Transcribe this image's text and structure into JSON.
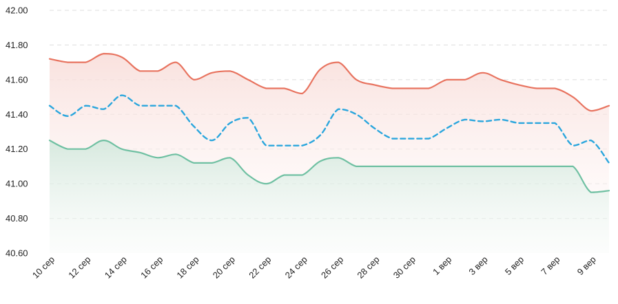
{
  "chart_data": {
    "type": "line",
    "title": "",
    "xlabel": "",
    "ylabel": "",
    "ylim": [
      40.6,
      42.0
    ],
    "y_ticks": [
      "40.60",
      "40.80",
      "41.00",
      "41.20",
      "41.40",
      "41.60",
      "41.80",
      "42.00"
    ],
    "grid": true,
    "legend": "none",
    "x_tick_labels": [
      "10 сер",
      "12 сер",
      "14 сер",
      "16 сер",
      "18 сер",
      "20 сер",
      "22 сер",
      "24 сер",
      "26 сер",
      "28 сер",
      "30 сер",
      "1 вер",
      "3 вер",
      "5 вер",
      "7 вер",
      "9 вер"
    ],
    "series": [
      {
        "color": "#e8735f",
        "fill": "#fbe9e7",
        "style": "solid",
        "values": [
          41.72,
          41.7,
          41.7,
          41.75,
          41.73,
          41.65,
          41.65,
          41.7,
          41.6,
          41.64,
          41.65,
          41.6,
          41.55,
          41.55,
          41.52,
          41.66,
          41.7,
          41.6,
          41.57,
          41.55,
          41.55,
          41.55,
          41.6,
          41.6,
          41.64,
          41.6,
          41.57,
          41.55,
          41.55,
          41.5,
          41.42,
          41.45
        ]
      },
      {
        "color": "#2aa6dd",
        "style": "dashed",
        "values": [
          41.45,
          41.39,
          41.45,
          41.43,
          41.51,
          41.45,
          41.45,
          41.45,
          41.33,
          41.25,
          41.35,
          41.38,
          41.22,
          41.22,
          41.22,
          41.28,
          41.43,
          41.4,
          41.32,
          41.26,
          41.26,
          41.26,
          41.32,
          41.37,
          41.36,
          41.37,
          41.35,
          41.35,
          41.35,
          41.22,
          41.25,
          41.12
        ]
      },
      {
        "color": "#6fc0a2",
        "fill": "#e3efe8",
        "style": "solid",
        "values": [
          41.25,
          41.2,
          41.2,
          41.25,
          41.2,
          41.18,
          41.15,
          41.17,
          41.12,
          41.12,
          41.15,
          41.05,
          41.0,
          41.05,
          41.05,
          41.13,
          41.15,
          41.1,
          41.1,
          41.1,
          41.1,
          41.1,
          41.1,
          41.1,
          41.1,
          41.1,
          41.1,
          41.1,
          41.1,
          41.1,
          40.95,
          40.96
        ]
      }
    ]
  }
}
